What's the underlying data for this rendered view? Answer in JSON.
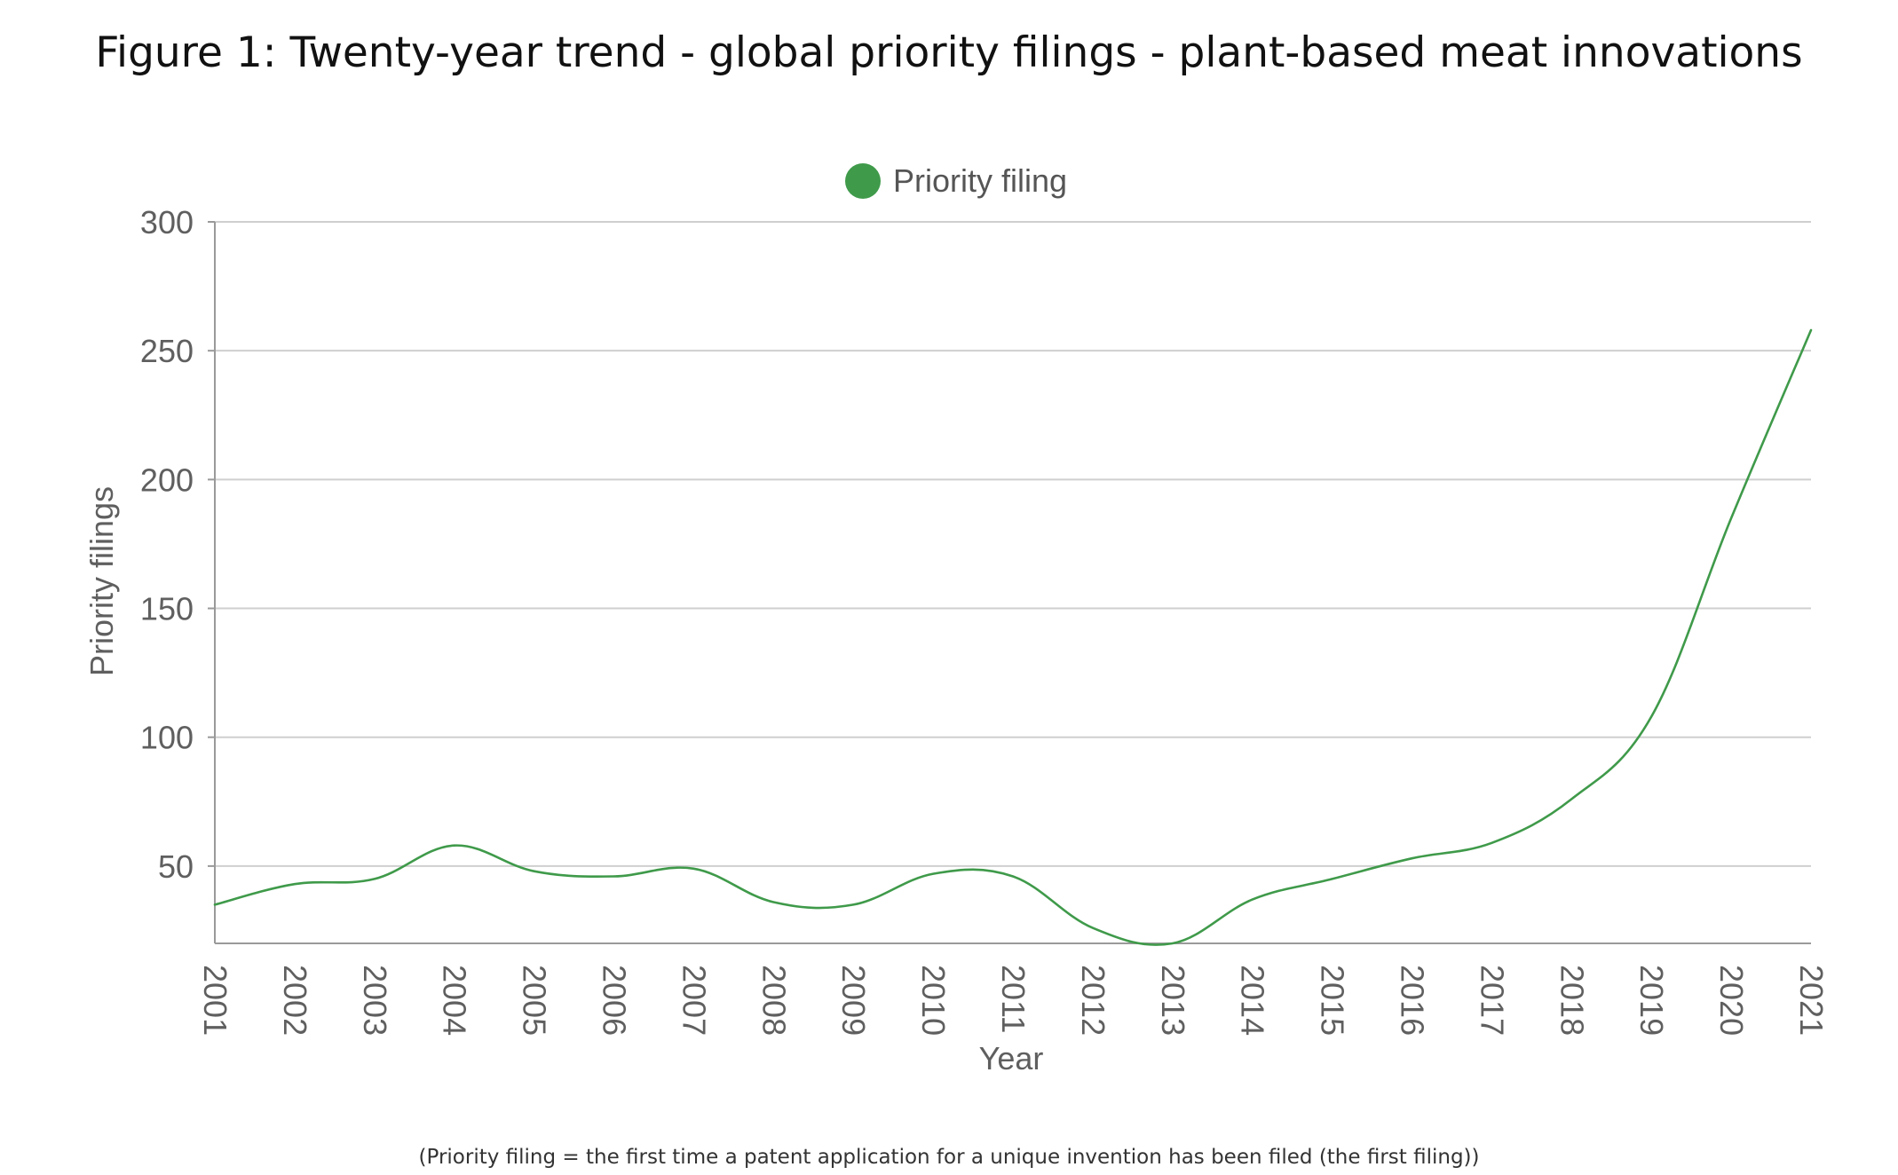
{
  "title": "Figure 1: Twenty-year trend - global priority filings - plant-based meat innovations",
  "footnote": "(Priority filing = the first time a patent application for a unique invention has been filed (the first filing))",
  "chart_data": {
    "type": "line",
    "x": [
      "2001",
      "2002",
      "2003",
      "2004",
      "2005",
      "2006",
      "2007",
      "2008",
      "2009",
      "2010",
      "2011",
      "2012",
      "2013",
      "2014",
      "2015",
      "2016",
      "2017",
      "2018",
      "2019",
      "2020",
      "2021"
    ],
    "series": [
      {
        "name": "Priority filing",
        "color": "#3f9a4a",
        "values": [
          35,
          43,
          45,
          58,
          48,
          46,
          49,
          36,
          35,
          47,
          46,
          26,
          20,
          37,
          45,
          53,
          59,
          76,
          108,
          185,
          258
        ]
      }
    ],
    "xlabel": "Year",
    "ylabel": "Priority filings",
    "ylim": [
      20,
      300
    ],
    "yticks": [
      "50",
      "100",
      "150",
      "200",
      "250",
      "300"
    ],
    "legend": "top-center",
    "grid": true
  }
}
